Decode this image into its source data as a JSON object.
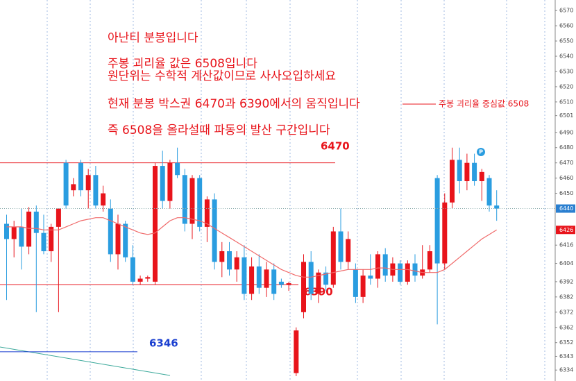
{
  "chart_data": {
    "type": "candlestick",
    "ylim": [
      6330,
      6576
    ],
    "yticks": [
      6570,
      6560,
      6550,
      6540,
      6530,
      6520,
      6510,
      6501,
      6490,
      6480,
      6470,
      6460,
      6450,
      6416,
      6404,
      6392,
      6382,
      6372,
      6362,
      6352,
      6343,
      6334
    ],
    "up_color": "#e8141b",
    "down_color": "#2a9de0",
    "ohlc": [
      [
        6430,
        6436,
        6380,
        6420
      ],
      [
        6420,
        6432,
        6408,
        6428
      ],
      [
        6428,
        6440,
        6400,
        6415
      ],
      [
        6415,
        6441,
        6410,
        6438
      ],
      [
        6438,
        6442,
        6372,
        6424
      ],
      [
        6424,
        6436,
        6410,
        6412
      ],
      [
        6412,
        6430,
        6405,
        6428
      ],
      [
        6428,
        6440,
        6372,
        6440
      ],
      [
        6470,
        6472,
        6440,
        6442
      ],
      [
        6452,
        6460,
        6448,
        6456
      ],
      [
        6470,
        6472,
        6448,
        6452
      ],
      [
        6452,
        6466,
        6440,
        6462
      ],
      [
        6462,
        6468,
        6440,
        6442
      ],
      [
        6442,
        6455,
        6438,
        6450
      ],
      [
        6440,
        6446,
        6405,
        6410
      ],
      [
        6410,
        6436,
        6400,
        6430
      ],
      [
        6430,
        6432,
        6405,
        6408
      ],
      [
        6408,
        6416,
        6390,
        6392
      ],
      [
        6392,
        6396,
        6390,
        6394
      ],
      [
        6394,
        6396,
        6392,
        6395
      ],
      [
        6392,
        6470,
        6390,
        6468
      ],
      [
        6468,
        6478,
        6440,
        6445
      ],
      [
        6445,
        6472,
        6440,
        6470
      ],
      [
        6470,
        6480,
        6460,
        6462
      ],
      [
        6462,
        6466,
        6425,
        6430
      ],
      [
        6430,
        6462,
        6420,
        6460
      ],
      [
        6460,
        6462,
        6425,
        6428
      ],
      [
        6428,
        6448,
        6418,
        6446
      ],
      [
        6446,
        6450,
        6400,
        6405
      ],
      [
        6405,
        6418,
        6395,
        6412
      ],
      [
        6412,
        6418,
        6396,
        6400
      ],
      [
        6400,
        6412,
        6392,
        6408
      ],
      [
        6408,
        6416,
        6380,
        6384
      ],
      [
        6384,
        6408,
        6380,
        6402
      ],
      [
        6402,
        6410,
        6384,
        6388
      ],
      [
        6388,
        6405,
        6382,
        6400
      ],
      [
        6400,
        6404,
        6380,
        6384
      ],
      [
        6392,
        6394,
        6388,
        6390
      ],
      [
        6390,
        6392,
        6386,
        6391
      ],
      [
        6332,
        6362,
        6330,
        6360
      ],
      [
        6372,
        6410,
        6368,
        6405
      ],
      [
        6405,
        6412,
        6380,
        6384
      ],
      [
        6384,
        6400,
        6378,
        6398
      ],
      [
        6398,
        6402,
        6386,
        6390
      ],
      [
        6390,
        6428,
        6388,
        6425
      ],
      [
        6425,
        6440,
        6400,
        6405
      ],
      [
        6405,
        6425,
        6400,
        6420
      ],
      [
        6400,
        6404,
        6378,
        6382
      ],
      [
        6382,
        6400,
        6378,
        6396
      ],
      [
        6396,
        6410,
        6390,
        6394
      ],
      [
        6394,
        6412,
        6388,
        6410
      ],
      [
        6410,
        6414,
        6392,
        6396
      ],
      [
        6396,
        6408,
        6392,
        6404
      ],
      [
        6404,
        6406,
        6390,
        6392
      ],
      [
        6392,
        6406,
        6390,
        6404
      ],
      [
        6404,
        6410,
        6392,
        6396
      ],
      [
        6396,
        6416,
        6394,
        6400
      ],
      [
        6400,
        6416,
        6398,
        6412
      ],
      [
        6460,
        6462,
        6364,
        6404
      ],
      [
        6404,
        6450,
        6400,
        6444
      ],
      [
        6444,
        6480,
        6440,
        6472
      ],
      [
        6472,
        6480,
        6450,
        6458
      ],
      [
        6458,
        6476,
        6452,
        6470
      ],
      [
        6470,
        6476,
        6455,
        6458
      ],
      [
        6458,
        6466,
        6445,
        6464
      ],
      [
        6460,
        6462,
        6438,
        6442
      ],
      [
        6442,
        6452,
        6432,
        6440
      ]
    ],
    "ma": {
      "color": "#f06a6a",
      "values": [
        6428,
        6428,
        6428,
        6427,
        6427,
        6426,
        6426,
        6426,
        6428,
        6430,
        6432,
        6433,
        6434,
        6434,
        6432,
        6430,
        6428,
        6426,
        6424,
        6423,
        6424,
        6428,
        6432,
        6434,
        6434,
        6433,
        6432,
        6430,
        6427,
        6424,
        6421,
        6418,
        6415,
        6412,
        6409,
        6406,
        6403,
        6400,
        6398,
        6396,
        6395,
        6395,
        6396,
        6397,
        6398,
        6399,
        6400,
        6400,
        6400,
        6400,
        6401,
        6401,
        6400,
        6400,
        6400,
        6399,
        6398,
        6398,
        6398,
        6400,
        6404,
        6408,
        6412,
        6416,
        6420,
        6423,
        6426
      ]
    },
    "levels": [
      {
        "value": 6470,
        "color": "#e8141b"
      },
      {
        "value": 6390,
        "color": "#e8141b"
      },
      {
        "value": 6346,
        "color": "#1a3fd0"
      }
    ],
    "annotations": [
      "아난티 분봉입니다",
      "주봉 괴리율 값은 6508입니다",
      "원단위는 수학적 계산값이므로 사사오입하세요",
      "현재 분봉 박스권 6470과 6390에서의 움직입니다",
      "즉 6508을 올라설때 파동의 발산 구간입니다"
    ],
    "side_note": "주봉 괴리율 중심값 6508"
  }
}
